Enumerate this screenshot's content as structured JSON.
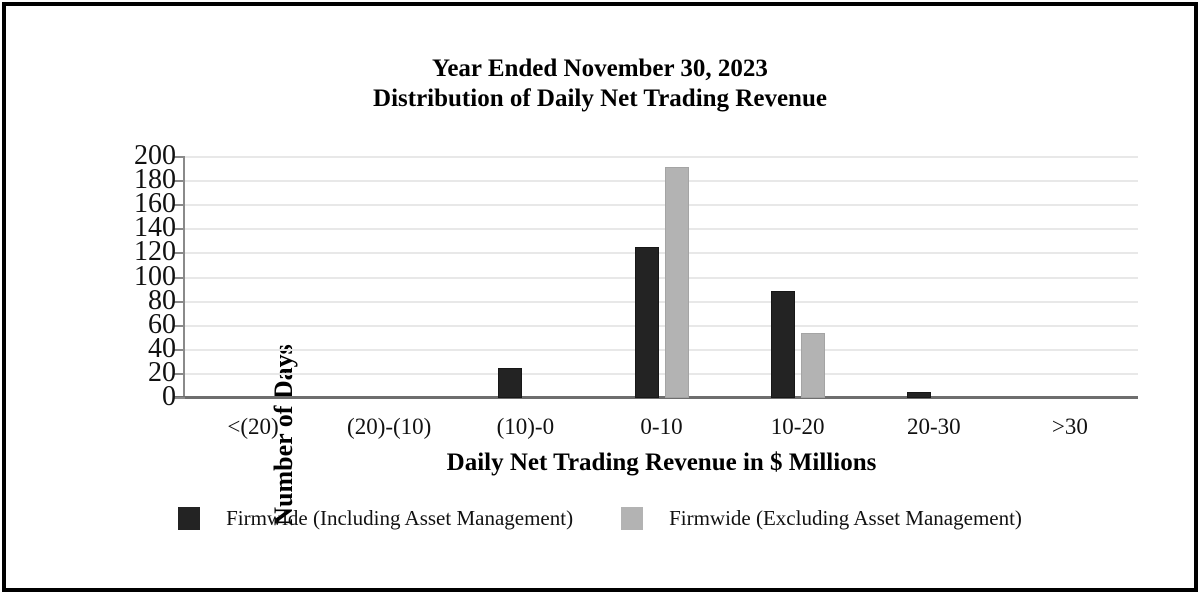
{
  "chart_data": {
    "type": "bar",
    "title": "Year Ended November 30, 2023 Distribution of Daily Net Trading Revenue",
    "title_line1": "Year Ended November 30, 2023",
    "title_line2": "Distribution of Daily Net Trading Revenue",
    "xlabel": "Daily Net Trading Revenue in $ Millions",
    "ylabel": "Number of Days",
    "categories": [
      "<(20)",
      "(20)-(10)",
      "(10)-0",
      "0-10",
      "10-20",
      "20-30",
      ">30"
    ],
    "series": [
      {
        "name": "Firmwide (Including Asset Management)",
        "color": "#232323",
        "values": [
          0,
          0,
          25,
          125,
          89,
          5,
          0
        ]
      },
      {
        "name": "Firmwide (Excluding Asset Management)",
        "color": "#b3b3b3",
        "values": [
          0,
          0,
          0,
          192,
          54,
          0,
          0
        ]
      }
    ],
    "ylim": [
      0,
      200
    ],
    "yticks": [
      0,
      20,
      40,
      60,
      80,
      100,
      120,
      140,
      160,
      180,
      200
    ],
    "grid": "horizontal",
    "legend_position": "bottom"
  },
  "colors": {
    "bar_dark": "#232323",
    "bar_gray": "#b3b3b3",
    "gridline": "#e8e8e8",
    "axis": "#8a8a8a",
    "text": "#000000",
    "frame_border": "#000000"
  }
}
